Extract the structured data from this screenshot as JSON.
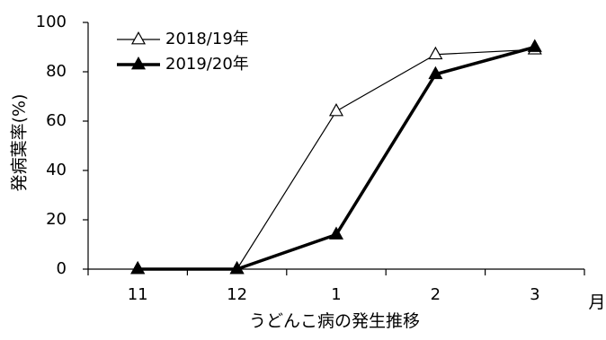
{
  "chart_data": {
    "type": "line",
    "categories": [
      "11",
      "12",
      "1",
      "2",
      "3"
    ],
    "x_unit": "月",
    "xlabel": "うどんこ病の発生推移",
    "ylabel": "発病葉率(%)",
    "ylim": [
      0,
      100
    ],
    "yticks": [
      0,
      20,
      40,
      60,
      80,
      100
    ],
    "grid": false,
    "legend_position": "top-left",
    "series": [
      {
        "name": "2018/19年",
        "marker": "open-triangle",
        "line": "thin",
        "values": [
          0,
          0,
          64,
          87,
          89
        ]
      },
      {
        "name": "2019/20年",
        "marker": "filled-triangle",
        "line": "thick",
        "values": [
          0,
          0,
          14,
          79,
          90
        ]
      }
    ],
    "colors": {
      "series_line": "#000000",
      "background": "#ffffff"
    }
  }
}
